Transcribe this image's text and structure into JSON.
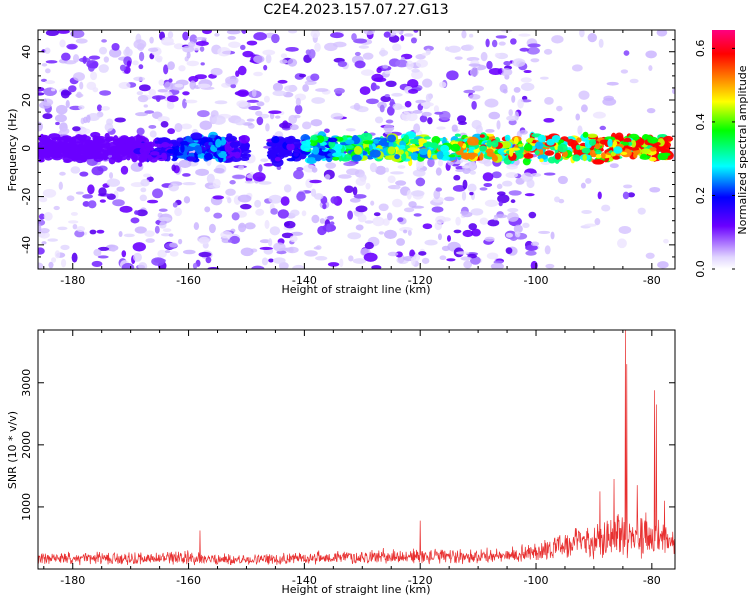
{
  "chart_data": {
    "title": "C2E4.2023.157.07.27.G13",
    "panels": [
      {
        "type": "heatmap",
        "name": "spectrogram",
        "xlabel": "Height of straight line (km)",
        "ylabel": "Frequency (Hz)",
        "xlim": [
          -186,
          -76
        ],
        "ylim": [
          -50,
          49
        ],
        "x_ticks": [
          -180,
          -160,
          -140,
          -120,
          -100,
          -80
        ],
        "y_ticks": [
          -40,
          -20,
          0,
          20,
          40
        ],
        "x_tick_labels": [
          "-180",
          "-160",
          "-140",
          "-120",
          "-100",
          "-80"
        ],
        "y_tick_labels": [
          "-40",
          "-20",
          "0",
          "20",
          "40"
        ],
        "signal_band": {
          "center_hz": 0,
          "half_width_hz": 5,
          "from_km": -186,
          "to_km": -77
        },
        "noise_cutoff_km": -100,
        "colorbar": {
          "label": "Normalized spectral amplitude",
          "range": [
            0.0,
            0.65
          ],
          "ticks": [
            0.0,
            0.2,
            0.4,
            0.6
          ],
          "tick_labels": [
            "0.0",
            "0.2",
            "0.4",
            "0.6"
          ],
          "colors": [
            "#e0d4ff",
            "#6a00ff",
            "#0000ff",
            "#00ffff",
            "#00ff00",
            "#ffff00",
            "#ff8000",
            "#ff0000",
            "#ff0080"
          ]
        }
      },
      {
        "type": "line",
        "name": "snr",
        "xlabel": "Height of straight line (km)",
        "ylabel": "SNR (10 * v/v)",
        "xlim": [
          -186,
          -76
        ],
        "ylim": [
          0,
          3850
        ],
        "x_ticks": [
          -180,
          -160,
          -140,
          -120,
          -100,
          -80
        ],
        "y_ticks": [
          1000,
          2000,
          3000
        ],
        "x_tick_labels": [
          "-180",
          "-160",
          "-140",
          "-120",
          "-100",
          "-80"
        ],
        "y_tick_labels": [
          "1000",
          "2000",
          "3000"
        ],
        "color": "#e83030",
        "envelope": [
          {
            "x": -186,
            "base": 150,
            "amp": 220
          },
          {
            "x": -160,
            "base": 150,
            "amp": 260
          },
          {
            "x": -150,
            "base": 130,
            "amp": 200
          },
          {
            "x": -140,
            "base": 160,
            "amp": 230
          },
          {
            "x": -125,
            "base": 180,
            "amp": 280
          },
          {
            "x": -115,
            "base": 180,
            "amp": 300
          },
          {
            "x": -105,
            "base": 190,
            "amp": 260
          },
          {
            "x": -100,
            "base": 260,
            "amp": 380
          },
          {
            "x": -95,
            "base": 340,
            "amp": 520
          },
          {
            "x": -90,
            "base": 420,
            "amp": 700
          },
          {
            "x": -86,
            "base": 500,
            "amp": 950
          },
          {
            "x": -82,
            "base": 480,
            "amp": 900
          },
          {
            "x": -79,
            "base": 420,
            "amp": 700
          },
          {
            "x": -76,
            "base": 360,
            "amp": 560
          }
        ],
        "peaks": [
          {
            "x": -84.6,
            "y": 3850
          },
          {
            "x": -84.3,
            "y": 3300
          },
          {
            "x": -79.5,
            "y": 2880
          },
          {
            "x": -79.2,
            "y": 2650
          },
          {
            "x": -86.5,
            "y": 1450
          },
          {
            "x": -82.5,
            "y": 1350
          },
          {
            "x": -89.0,
            "y": 1250
          },
          {
            "x": -77.8,
            "y": 1100
          },
          {
            "x": -120.0,
            "y": 780
          },
          {
            "x": -158.0,
            "y": 620
          }
        ]
      }
    ]
  }
}
